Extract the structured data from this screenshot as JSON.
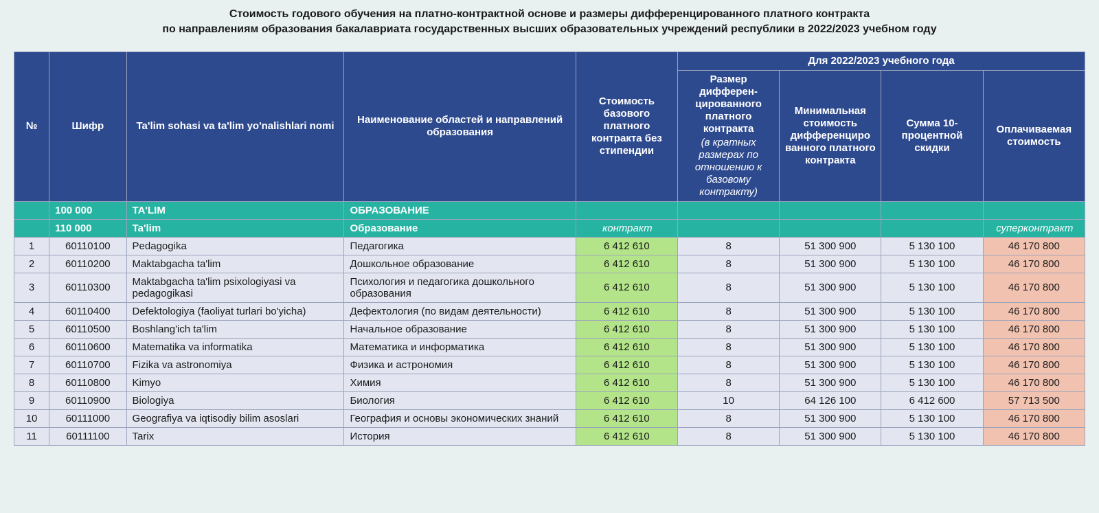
{
  "title_line1": "Стоимость годового обучения на платно-контрактной основе и размеры дифференцированного платного контракта",
  "title_line2": "по направлениям образования бакалавриата государственных высших образовательных учреждений республики в 2022/2023 учебном году",
  "header": {
    "num": "№",
    "cipher": "Шифр",
    "uz": "Ta'lim sohasi va ta'lim yo'nalishlari nomi",
    "ru": "Наименование областей и направлений образования",
    "base": "Стоимость базового платного контракта без стипендии",
    "group_year": "Для 2022/2023 учебного года",
    "mult_main": "Размер дифферен­цированного платного контракта",
    "mult_sub": "(в кратных размерах по отношению к базовому контракту)",
    "min": "Минимальная стоимость дифференциро ванного платного контракта",
    "disc": "Сумма 10-процентной скидки",
    "pay": "Оплачиваемая стоимость"
  },
  "section": {
    "cipher": "100 000",
    "uz": "TA'LIM",
    "ru": "ОБРАЗОВАНИЕ"
  },
  "subsection": {
    "cipher": "110 000",
    "uz": "Ta'lim",
    "ru": "Образование",
    "base_label": "контракт",
    "pay_label": "суперконтракт"
  },
  "rows": [
    {
      "num": "1",
      "cipher": "60110100",
      "uz": " Pedagogika",
      "ru": "Педагогика",
      "base": "6 412 610",
      "mult": "8",
      "min": "51 300 900",
      "disc": "5 130 100",
      "pay": "46 170 800"
    },
    {
      "num": "2",
      "cipher": "60110200",
      "uz": " Maktabgacha ta'lim",
      "ru": "Дошкольное образование",
      "base": "6 412 610",
      "mult": "8",
      "min": "51 300 900",
      "disc": "5 130 100",
      "pay": "46 170 800"
    },
    {
      "num": "3",
      "cipher": "60110300",
      "uz": " Maktabgacha ta'lim psixologiyasi va pedagogikasi",
      "ru": "Психология и педагогика дошкольного образования",
      "base": "6 412 610",
      "mult": "8",
      "min": "51 300 900",
      "disc": "5 130 100",
      "pay": "46 170 800"
    },
    {
      "num": "4",
      "cipher": "60110400",
      "uz": " Defektologiya (faoliyat turlari bo'yicha)",
      "ru": "Дефектология (по видам деятельности)",
      "base": "6 412 610",
      "mult": "8",
      "min": "51 300 900",
      "disc": "5 130 100",
      "pay": "46 170 800"
    },
    {
      "num": "5",
      "cipher": "60110500",
      "uz": " Boshlang'ich ta'lim",
      "ru": "Начальное образование",
      "base": "6 412 610",
      "mult": "8",
      "min": "51 300 900",
      "disc": "5 130 100",
      "pay": "46 170 800"
    },
    {
      "num": "6",
      "cipher": "60110600",
      "uz": " Matematika va informatika",
      "ru": "Математика и информатика",
      "base": "6 412 610",
      "mult": "8",
      "min": "51 300 900",
      "disc": "5 130 100",
      "pay": "46 170 800"
    },
    {
      "num": "7",
      "cipher": "60110700",
      "uz": " Fizika va astronomiya",
      "ru": "Физика и астрономия",
      "base": "6 412 610",
      "mult": "8",
      "min": "51 300 900",
      "disc": "5 130 100",
      "pay": "46 170 800"
    },
    {
      "num": "8",
      "cipher": "60110800",
      "uz": " Kimyo",
      "ru": "Химия",
      "base": "6 412 610",
      "mult": "8",
      "min": "51 300 900",
      "disc": "5 130 100",
      "pay": "46 170 800"
    },
    {
      "num": "9",
      "cipher": "60110900",
      "uz": " Biologiya",
      "ru": "Биология",
      "base": "6 412 610",
      "mult": "10",
      "min": "64 126 100",
      "disc": "6 412 600",
      "pay": "57 713 500"
    },
    {
      "num": "10",
      "cipher": "60111000",
      "uz": " Geografiya va iqtisodiy bilim asoslari",
      "ru": "География и основы экономических знаний",
      "base": "6 412 610",
      "mult": "8",
      "min": "51 300 900",
      "disc": "5 130 100",
      "pay": "46 170 800"
    },
    {
      "num": "11",
      "cipher": "60111100",
      "uz": " Tarix",
      "ru": "История",
      "base": "6 412 610",
      "mult": "8",
      "min": "51 300 900",
      "disc": "5 130 100",
      "pay": "46 170 800"
    }
  ]
}
